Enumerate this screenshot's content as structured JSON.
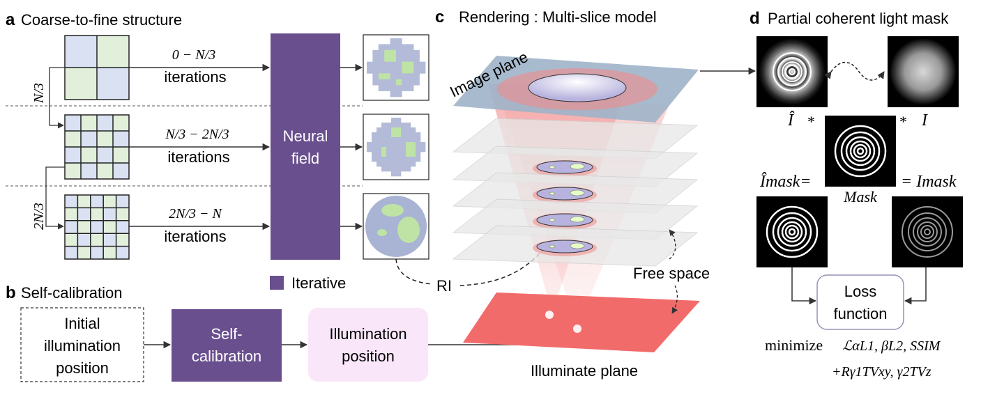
{
  "panel_a": {
    "letter": "a",
    "title": "Coarse-to-fine structure",
    "left_labels": [
      "N/3",
      "2N/3"
    ],
    "rows": [
      {
        "range": "0 − N/3",
        "label": "iterations"
      },
      {
        "range": "N/3 − 2N/3",
        "label": "iterations"
      },
      {
        "range": "2N/3 − N",
        "label": "iterations"
      }
    ],
    "neural_field": [
      "Neural",
      "field"
    ],
    "legend": "Iterative",
    "ri_label": "RI"
  },
  "panel_b": {
    "letter": "b",
    "title": "Self-calibration",
    "initial_box": [
      "Initial",
      "illumination",
      "position"
    ],
    "selfcal_box": [
      "Self-",
      "calibration"
    ],
    "illum_box": [
      "Illumination",
      "position"
    ]
  },
  "panel_c": {
    "letter": "c",
    "title": "Rendering : Multi-slice model",
    "image_plane": "Image plane",
    "free_space": "Free space",
    "illuminate_plane": "Illuminate plane"
  },
  "panel_d": {
    "letter": "d",
    "title": "Partial coherent light mask",
    "i_hat": "Î",
    "i": "I",
    "star": "*",
    "i_hat_mask": "Îmask=",
    "i_mask": "= Imask",
    "mask": "Mask",
    "loss": [
      "Loss",
      "function"
    ],
    "minimize": "minimize",
    "loss_term": "ℒαL1, βL2, SSIM",
    "reg_term": "+Rγ1TVxy, γ2TVz"
  },
  "colors": {
    "purple": "#6a4f8e",
    "grid_blue": "#d9e1f2",
    "grid_green": "#e2efda",
    "pink_box": "#f9e6f9",
    "red": "#f26b6b",
    "plane_blue": "#9eb4c9"
  }
}
